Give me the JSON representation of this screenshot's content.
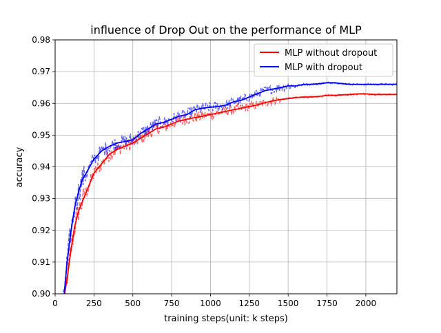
{
  "chart_data": {
    "type": "line",
    "title": "influence of Drop Out on the performance of MLP",
    "xlabel": "training steps(unit: k steps)",
    "ylabel": "accuracy",
    "xlim": [
      0,
      2200
    ],
    "ylim": [
      0.9,
      0.98
    ],
    "x_ticks": [
      0,
      250,
      500,
      750,
      1000,
      1250,
      1500,
      1750,
      2000
    ],
    "x_tick_labels": [
      "0",
      "250",
      "500",
      "750",
      "1000",
      "1250",
      "1500",
      "1750",
      "2000"
    ],
    "y_ticks": [
      0.9,
      0.91,
      0.92,
      0.93,
      0.94,
      0.95,
      0.96,
      0.97,
      0.98
    ],
    "y_tick_labels": [
      "0.90",
      "0.91",
      "0.92",
      "0.93",
      "0.94",
      "0.95",
      "0.96",
      "0.97",
      "0.98"
    ],
    "grid": true,
    "legend_position": "top-right",
    "series": [
      {
        "name": "MLP without dropout",
        "color": "#ff0000",
        "x": [
          50,
          75,
          100,
          125,
          150,
          175,
          200,
          250,
          300,
          350,
          400,
          450,
          500,
          550,
          600,
          650,
          700,
          750,
          800,
          850,
          900,
          950,
          1000,
          1050,
          1100,
          1150,
          1200,
          1250,
          1300,
          1350,
          1400,
          1450,
          1500,
          1550,
          1600,
          1650,
          1700,
          1750,
          1800,
          1850,
          1900,
          1950,
          2000,
          2050,
          2100,
          2150,
          2200
        ],
        "values": [
          0.897,
          0.904,
          0.913,
          0.921,
          0.926,
          0.929,
          0.932,
          0.938,
          0.941,
          0.944,
          0.9455,
          0.9465,
          0.9475,
          0.949,
          0.9505,
          0.952,
          0.9525,
          0.9535,
          0.9545,
          0.955,
          0.9555,
          0.956,
          0.9565,
          0.957,
          0.9575,
          0.958,
          0.9585,
          0.959,
          0.9595,
          0.9602,
          0.9608,
          0.9612,
          0.9615,
          0.9618,
          0.962,
          0.962,
          0.9622,
          0.9625,
          0.9625,
          0.9627,
          0.9628,
          0.963,
          0.963,
          0.9628,
          0.9628,
          0.9628,
          0.9628
        ]
      },
      {
        "name": "MLP with dropout",
        "color": "#0000ff",
        "x": [
          50,
          75,
          100,
          125,
          150,
          175,
          200,
          250,
          300,
          350,
          400,
          450,
          500,
          550,
          600,
          650,
          700,
          750,
          800,
          850,
          900,
          950,
          1000,
          1050,
          1100,
          1150,
          1200,
          1250,
          1300,
          1350,
          1400,
          1450,
          1500,
          1550,
          1600,
          1650,
          1700,
          1750,
          1800,
          1850,
          1900,
          1950,
          2000,
          2050,
          2100,
          2150,
          2200
        ],
        "values": [
          0.895,
          0.909,
          0.919,
          0.927,
          0.932,
          0.936,
          0.938,
          0.9425,
          0.945,
          0.9465,
          0.9475,
          0.948,
          0.9485,
          0.9505,
          0.952,
          0.9535,
          0.954,
          0.955,
          0.956,
          0.9565,
          0.958,
          0.9585,
          0.9588,
          0.959,
          0.9595,
          0.9605,
          0.961,
          0.962,
          0.963,
          0.964,
          0.9645,
          0.965,
          0.9655,
          0.9655,
          0.966,
          0.966,
          0.9662,
          0.9665,
          0.9665,
          0.9662,
          0.966,
          0.966,
          0.966,
          0.966,
          0.966,
          0.966,
          0.966
        ]
      }
    ]
  }
}
